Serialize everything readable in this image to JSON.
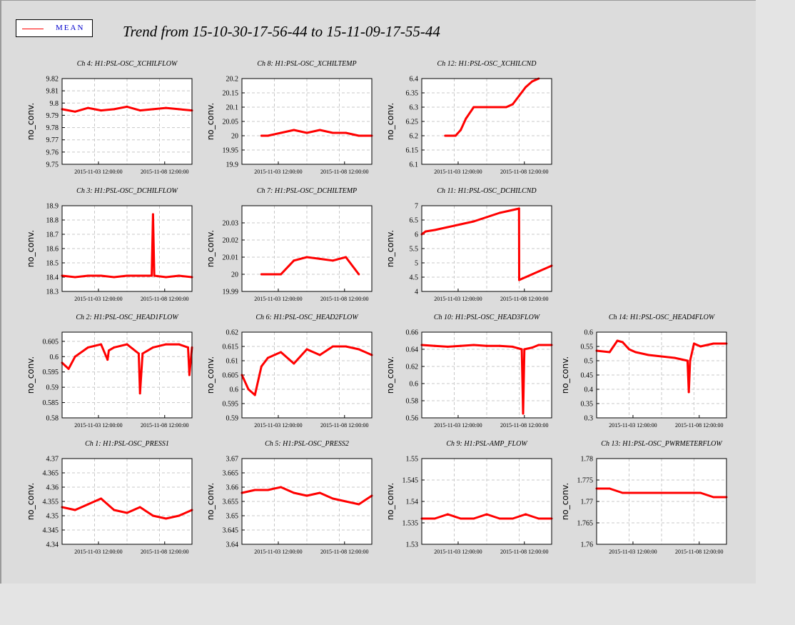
{
  "title": "Trend from 15-10-30-17-56-44 to 15-11-09-17-55-44",
  "legend": {
    "label": "MEAN",
    "color": "#ff0000"
  },
  "colors": {
    "trace": "#ff0000",
    "grid": "#c8c8c8",
    "plot_bg": "#ffffff",
    "frame_bg": "#dcdcdc"
  },
  "chart_data": [
    {
      "title": "Ch 4: H1:PSL-OSC_XCHILFLOW",
      "type": "line",
      "ylabel": "no_conv.",
      "ylim": [
        9.75,
        9.82
      ],
      "yticks": [
        "9.75",
        "9.76",
        "9.77",
        "9.78",
        "9.79",
        "9.8",
        "9.81",
        "9.82"
      ],
      "xticks": [
        "2015-11-03 12:00:00",
        "2015-11-08 12:00:00"
      ],
      "x": [
        0,
        1,
        2,
        3,
        4,
        5,
        6,
        7,
        8,
        9,
        10
      ],
      "y": [
        9.795,
        9.793,
        9.796,
        9.794,
        9.795,
        9.797,
        9.794,
        9.795,
        9.796,
        9.795,
        9.794
      ]
    },
    {
      "title": "Ch 8: H1:PSL-OSC_XCHILTEMP",
      "type": "line",
      "ylabel": "no_conv.",
      "ylim": [
        19.9,
        20.2
      ],
      "yticks": [
        "19.9",
        "19.95",
        "20",
        "20.05",
        "20.1",
        "20.15",
        "20.2"
      ],
      "xticks": [
        "2015-11-03 12:00:00",
        "2015-11-08 12:00:00"
      ],
      "x": [
        1.5,
        2,
        3,
        4,
        5,
        6,
        7,
        8,
        9,
        10
      ],
      "y": [
        20.0,
        20.0,
        20.01,
        20.02,
        20.01,
        20.02,
        20.01,
        20.01,
        20.0,
        20.0
      ]
    },
    {
      "title": "Ch 12: H1:PSL-OSC_XCHILCND",
      "type": "line",
      "ylabel": "no_conv.",
      "ylim": [
        6.1,
        6.4
      ],
      "yticks": [
        "6.1",
        "6.15",
        "6.2",
        "6.25",
        "6.3",
        "6.35",
        "6.4"
      ],
      "xticks": [
        "2015-11-03 12:00:00",
        "2015-11-08 12:00:00"
      ],
      "x": [
        1.8,
        2.2,
        2.6,
        3.0,
        3.4,
        4.0,
        5.0,
        6.0,
        6.5,
        7.0,
        7.5,
        8.0,
        8.5,
        9.0
      ],
      "y": [
        6.2,
        6.2,
        6.2,
        6.22,
        6.26,
        6.3,
        6.3,
        6.3,
        6.3,
        6.31,
        6.34,
        6.37,
        6.39,
        6.4
      ]
    },
    {
      "title": "Ch 3: H1:PSL-OSC_DCHILFLOW",
      "type": "line",
      "ylabel": "no_conv.",
      "ylim": [
        18.3,
        18.9
      ],
      "yticks": [
        "18.3",
        "18.4",
        "18.5",
        "18.6",
        "18.7",
        "18.8",
        "18.9"
      ],
      "xticks": [
        "2015-11-03 12:00:00",
        "2015-11-08 12:00:00"
      ],
      "x": [
        0,
        1,
        2,
        3,
        4,
        5,
        6,
        6.9,
        7,
        7.1,
        8,
        9,
        10
      ],
      "y": [
        18.41,
        18.4,
        18.41,
        18.41,
        18.4,
        18.41,
        18.41,
        18.41,
        18.84,
        18.41,
        18.4,
        18.41,
        18.4
      ]
    },
    {
      "title": "Ch 7: H1:PSL-OSC_DCHILTEMP",
      "type": "line",
      "ylabel": "no_conv.",
      "ylim": [
        19.99,
        20.04
      ],
      "yticks": [
        "19.99",
        "20",
        "20.01",
        "20.02",
        "20.03"
      ],
      "xticks": [
        "2015-11-03 12:00:00",
        "2015-11-08 12:00:00"
      ],
      "x": [
        1.5,
        2,
        3,
        4,
        5,
        6,
        7,
        8,
        9
      ],
      "y": [
        20.0,
        20.0,
        20.0,
        20.008,
        20.01,
        20.009,
        20.008,
        20.01,
        20.0
      ]
    },
    {
      "title": "Ch 11: H1:PSL-OSC_DCHILCND",
      "type": "line",
      "ylabel": "no_conv.",
      "ylim": [
        4,
        7
      ],
      "yticks": [
        "4",
        "4.5",
        "5",
        "5.5",
        "6",
        "6.5",
        "7"
      ],
      "xticks": [
        "2015-11-03 12:00:00",
        "2015-11-08 12:00:00"
      ],
      "x": [
        0,
        0.3,
        1,
        2,
        3,
        4,
        5,
        6,
        7,
        7.49,
        7.5,
        8,
        9,
        10
      ],
      "y": [
        6.0,
        6.1,
        6.15,
        6.25,
        6.35,
        6.45,
        6.6,
        6.75,
        6.85,
        6.9,
        4.4,
        4.5,
        4.7,
        4.9
      ]
    },
    {
      "title": "Ch 2: H1:PSL-OSC_HEAD1FLOW",
      "type": "line",
      "ylabel": "no_conv.",
      "ylim": [
        0.58,
        0.608
      ],
      "yticks": [
        "0.58",
        "0.585",
        "0.59",
        "0.595",
        "0.6",
        "0.605"
      ],
      "xticks": [
        "2015-11-03 12:00:00",
        "2015-11-08 12:00:00"
      ],
      "x": [
        0,
        0.5,
        1,
        2,
        3,
        3.5,
        3.6,
        4,
        5,
        5.9,
        6.0,
        6.2,
        7,
        8,
        9,
        9.7,
        9.8,
        10
      ],
      "y": [
        0.598,
        0.596,
        0.6,
        0.603,
        0.604,
        0.599,
        0.602,
        0.603,
        0.604,
        0.601,
        0.588,
        0.601,
        0.603,
        0.604,
        0.604,
        0.603,
        0.594,
        0.603
      ]
    },
    {
      "title": "Ch 6: H1:PSL-OSC_HEAD2FLOW",
      "type": "line",
      "ylabel": "no_conv.",
      "ylim": [
        0.59,
        0.62
      ],
      "yticks": [
        "0.59",
        "0.595",
        "0.6",
        "0.605",
        "0.61",
        "0.615",
        "0.62"
      ],
      "xticks": [
        "2015-11-03 12:00:00",
        "2015-11-08 12:00:00"
      ],
      "x": [
        0,
        0.5,
        1,
        1.5,
        2,
        3,
        4,
        5,
        6,
        7,
        8,
        9,
        10
      ],
      "y": [
        0.605,
        0.6,
        0.598,
        0.608,
        0.611,
        0.613,
        0.609,
        0.614,
        0.612,
        0.615,
        0.615,
        0.614,
        0.612
      ]
    },
    {
      "title": "Ch 10: H1:PSL-OSC_HEAD3FLOW",
      "type": "line",
      "ylabel": "no_conv.",
      "ylim": [
        0.56,
        0.66
      ],
      "yticks": [
        "0.56",
        "0.58",
        "0.6",
        "0.62",
        "0.64",
        "0.66"
      ],
      "xticks": [
        "2015-11-03 12:00:00",
        "2015-11-08 12:00:00"
      ],
      "x": [
        0,
        1,
        2,
        3,
        4,
        5,
        6,
        7,
        7.7,
        7.8,
        7.9,
        8.5,
        9,
        10
      ],
      "y": [
        0.645,
        0.644,
        0.643,
        0.644,
        0.645,
        0.644,
        0.644,
        0.643,
        0.64,
        0.565,
        0.64,
        0.642,
        0.645,
        0.645
      ]
    },
    {
      "title": "Ch 14: H1:PSL-OSC_HEAD4FLOW",
      "type": "line",
      "ylabel": "no_conv.",
      "ylim": [
        0.3,
        0.6
      ],
      "yticks": [
        "0.3",
        "0.35",
        "0.4",
        "0.45",
        "0.5",
        "0.55",
        "0.6"
      ],
      "xticks": [
        "2015-11-03 12:00:00",
        "2015-11-08 12:00:00"
      ],
      "x": [
        0,
        1,
        1.6,
        2,
        2.5,
        3,
        4,
        5,
        6,
        7,
        7.1,
        7.2,
        7.5,
        8,
        9,
        10
      ],
      "y": [
        0.535,
        0.53,
        0.57,
        0.565,
        0.54,
        0.53,
        0.52,
        0.515,
        0.51,
        0.5,
        0.39,
        0.5,
        0.56,
        0.55,
        0.56,
        0.56
      ]
    },
    {
      "title": "Ch 1: H1:PSL-OSC_PRESS1",
      "type": "line",
      "ylabel": "no_conv.",
      "ylim": [
        4.34,
        4.37
      ],
      "yticks": [
        "4.34",
        "4.345",
        "4.35",
        "4.355",
        "4.36",
        "4.365",
        "4.37"
      ],
      "xticks": [
        "2015-11-03 12:00:00",
        "2015-11-08 12:00:00"
      ],
      "x": [
        0,
        1,
        2,
        3,
        4,
        5,
        6,
        7,
        8,
        9,
        10
      ],
      "y": [
        4.353,
        4.352,
        4.354,
        4.356,
        4.352,
        4.351,
        4.353,
        4.35,
        4.349,
        4.35,
        4.352
      ]
    },
    {
      "title": "Ch 5: H1:PSL-OSC_PRESS2",
      "type": "line",
      "ylabel": "no_conv.",
      "ylim": [
        3.64,
        3.67
      ],
      "yticks": [
        "3.64",
        "3.645",
        "3.65",
        "3.655",
        "3.66",
        "3.665",
        "3.67"
      ],
      "xticks": [
        "2015-11-03 12:00:00",
        "2015-11-08 12:00:00"
      ],
      "x": [
        0,
        1,
        2,
        3,
        4,
        5,
        6,
        7,
        8,
        9,
        10
      ],
      "y": [
        3.658,
        3.659,
        3.659,
        3.66,
        3.658,
        3.657,
        3.658,
        3.656,
        3.655,
        3.654,
        3.657
      ]
    },
    {
      "title": "Ch 9: H1:PSL-AMP_FLOW",
      "type": "line",
      "ylabel": "no_conv.",
      "ylim": [
        1.53,
        1.55
      ],
      "yticks": [
        "1.53",
        "1.535",
        "1.54",
        "1.545",
        "1.55"
      ],
      "xticks": [
        "2015-11-03 12:00:00",
        "2015-11-08 12:00:00"
      ],
      "x": [
        0,
        1,
        2,
        3,
        4,
        5,
        6,
        7,
        8,
        9,
        10
      ],
      "y": [
        1.536,
        1.536,
        1.537,
        1.536,
        1.536,
        1.537,
        1.536,
        1.536,
        1.537,
        1.536,
        1.536
      ]
    },
    {
      "title": "Ch 13: H1:PSL-OSC_PWRMETERFLOW",
      "type": "line",
      "ylabel": "no_conv.",
      "ylim": [
        1.76,
        1.78
      ],
      "yticks": [
        "1.76",
        "1.765",
        "1.77",
        "1.775",
        "1.78"
      ],
      "xticks": [
        "2015-11-03 12:00:00",
        "2015-11-08 12:00:00"
      ],
      "x": [
        0,
        1,
        2,
        3,
        4,
        5,
        6,
        7,
        8,
        9,
        10
      ],
      "y": [
        1.773,
        1.773,
        1.772,
        1.772,
        1.772,
        1.772,
        1.772,
        1.772,
        1.772,
        1.771,
        1.771
      ]
    }
  ]
}
